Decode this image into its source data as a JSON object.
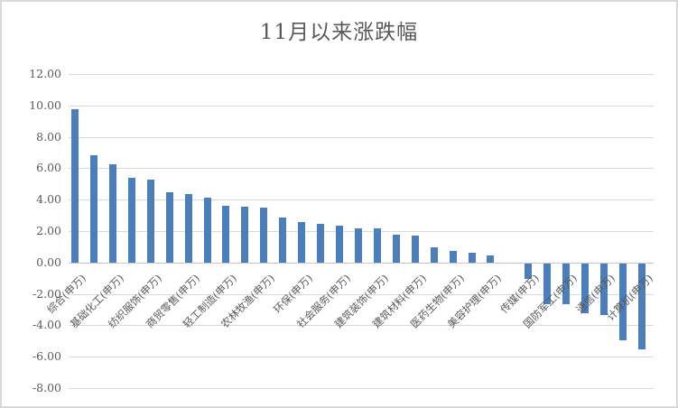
{
  "chart_title": "11月以来涨跌幅",
  "chart_data": {
    "type": "bar",
    "title": "11月以来涨跌幅",
    "categories": [
      "综合(申万)",
      "",
      "基础化工(申万)",
      "",
      "纺织服饰(申万)",
      "",
      "商贸零售(申万)",
      "",
      "轻工制造(申万)",
      "",
      "农林牧渔(申万)",
      "",
      "环保(申万)",
      "",
      "社会服务(申万)",
      "",
      "建筑装饰(申万)",
      "",
      "建筑材料(申万)",
      "",
      "医药生物(申万)",
      "",
      "美容护理(申万)",
      "",
      "传媒(申万)",
      "",
      "国防军工(申万)",
      "",
      "通信(申万)",
      "",
      "计算机(申万)"
    ],
    "values": [
      9.75,
      6.85,
      6.25,
      5.4,
      5.25,
      4.5,
      4.35,
      4.15,
      3.6,
      3.55,
      3.5,
      2.85,
      2.6,
      2.45,
      2.35,
      2.2,
      2.2,
      1.75,
      1.7,
      0.95,
      0.75,
      0.6,
      0.45,
      0.0,
      -1.0,
      -2.6,
      -2.6,
      -3.2,
      -3.3,
      -4.9,
      -5.5
    ],
    "xlabel": "",
    "ylabel": "",
    "ylim": [
      -8,
      12
    ],
    "ytick_interval": 2,
    "ytick_labels": [
      "12.00",
      "10.00",
      "8.00",
      "6.00",
      "4.00",
      "2.00",
      "0.00",
      "-2.00",
      "-4.00",
      "-6.00",
      "-8.00"
    ],
    "grid": true,
    "legend": false,
    "note_label_pattern": "every second category labeled",
    "colors": {
      "bar": "#4a7ebd",
      "gridline": "#d9d9d9",
      "axis_text": "#595959",
      "title_text": "#595959",
      "frame_border": "#d9d9d9"
    }
  }
}
